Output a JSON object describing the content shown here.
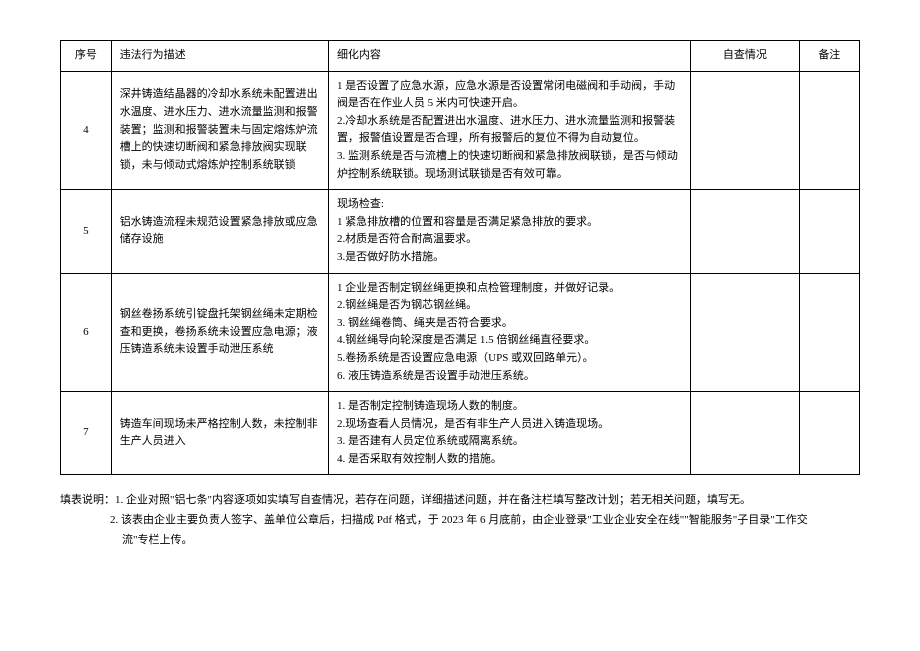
{
  "table": {
    "headers": {
      "num": "序号",
      "desc": "违法行为描述",
      "detail": "细化内容",
      "check": "自查情况",
      "note": "备注"
    },
    "rows": [
      {
        "num": "4",
        "desc": "深井铸造结晶器的冷却水系统未配置进出水温度、进水压力、进水流量监测和报警装置；监测和报警装置未与固定熔炼炉流槽上的快速切断阀和紧急排放阀实现联锁，未与倾动式熔炼炉控制系统联锁",
        "detail": "1 是否设置了应急水源，应急水源是否设置常闭电磁阀和手动阀，手动阀是否在作业人员 5 米内可快速开启。\n2.冷却水系统是否配置进出水温度、进水压力、进水流量监测和报警装置，报警值设置是否合理，所有报警后的复位不得为自动复位。\n3. 监测系统是否与流槽上的快速切断阀和紧急排放阀联锁，是否与倾动炉控制系统联锁。现场测试联锁是否有效可靠。",
        "check": "",
        "note": ""
      },
      {
        "num": "5",
        "desc": "铝水铸造流程未规范设置紧急排放或应急储存设施",
        "detail": "现场检查:\n1 紧急排放槽的位置和容量是否满足紧急排放的要求。\n2.材质是否符合耐高温要求。\n3.是否做好防水措施。",
        "check": "",
        "note": ""
      },
      {
        "num": "6",
        "desc": "钢丝卷扬系统引锭盘托架钢丝绳未定期检查和更换，卷扬系统未设置应急电源；液压铸造系统未设置手动泄压系统",
        "detail": "1 企业是否制定钢丝绳更换和点检管理制度，并做好记录。\n2.钢丝绳是否为钢芯钢丝绳。\n3. 钢丝绳卷筒、绳夹是否符合要求。\n4.钢丝绳导向轮深度是否满足 1.5 倍钢丝绳直径要求。\n5.卷扬系统是否设置应急电源（UPS 或双回路单元）。\n6. 液压铸造系统是否设置手动泄压系统。",
        "check": "",
        "note": ""
      },
      {
        "num": "7",
        "desc": "铸造车间现场未严格控制人数，未控制非生产人员进入",
        "detail": "1. 是否制定控制铸造现场人数的制度。\n2.现场查看人员情况，是否有非生产人员进入铸造现场。\n3. 是否建有人员定位系统或隔离系统。\n4. 是否采取有效控制人数的措施。",
        "check": "",
        "note": ""
      }
    ]
  },
  "notes": {
    "line1": "填表说明：1. 企业对照\"铝七条\"内容逐项如实填写自查情况，若存在问题，详细描述问题，并在备注栏填写整改计划；若无相关问题，填写无。",
    "line2": "2. 该表由企业主要负责人签字、盖单位公章后，扫描成 Pdf 格式，于 2023 年 6 月底前，由企业登录\"工业企业安全在线\"\"智能服务\"子目录\"工作交",
    "line3": "流\"专栏上传。"
  }
}
